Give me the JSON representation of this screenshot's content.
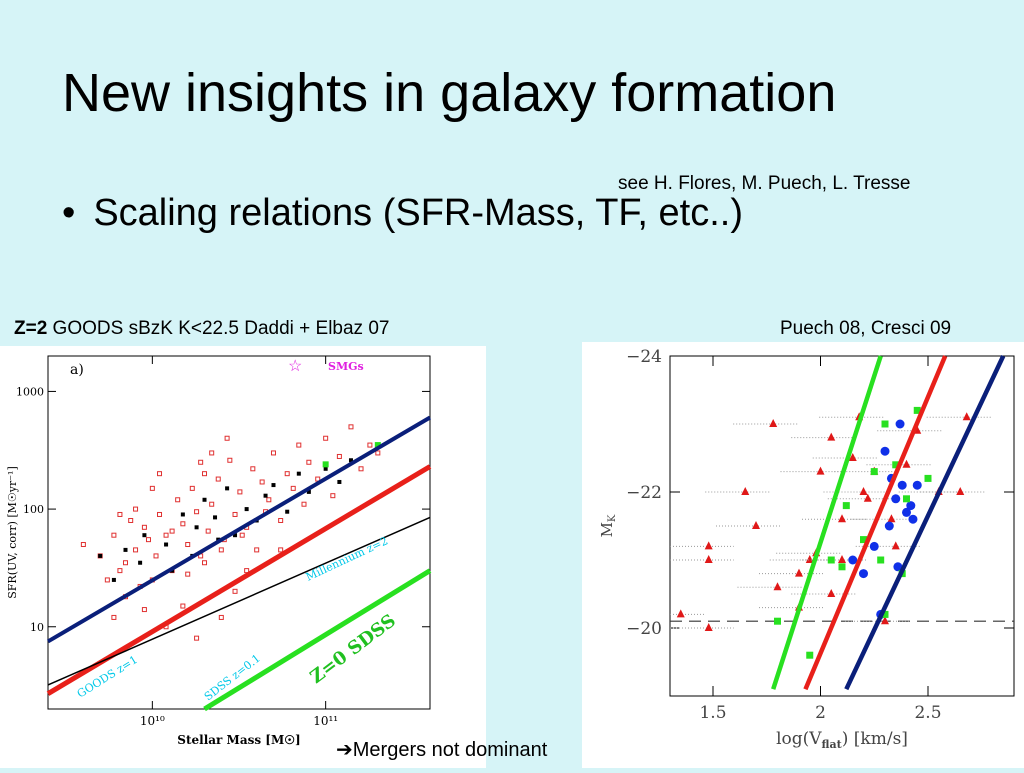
{
  "slide": {
    "title": "New insights in galaxy formation",
    "credit": "see H. Flores, M. Puech, L. Tresse",
    "bullet_marker": "•",
    "bullet": "Scaling relations  (SFR-Mass, TF, etc..)",
    "left_caption_bold": "Z=2",
    "left_caption": " GOODS sBzK K<22.5 Daddi + Elbaz 07",
    "right_caption": "Puech 08, Cresci 09",
    "footnote": "➔Mergers not dominant"
  },
  "chart_data": [
    {
      "type": "scatter",
      "panel_label": "a)",
      "xlabel": "Stellar Mass [M☉]",
      "ylabel": "SFR(UV, corr) [M☉yr⁻¹]",
      "x_scale": "log",
      "y_scale": "log",
      "xlim": [
        2500000000.0,
        400000000000.0
      ],
      "ylim": [
        2,
        2000
      ],
      "x_ticks": [
        {
          "value": 10000000000.0,
          "label": "10¹⁰"
        },
        {
          "value": 100000000000.0,
          "label": "10¹¹"
        }
      ],
      "y_ticks": [
        {
          "value": 10,
          "label": "10"
        },
        {
          "value": 100,
          "label": "100"
        },
        {
          "value": 1000,
          "label": "1000"
        }
      ],
      "legend": {
        "symbol": "☆",
        "label": "SMGs",
        "color": "#e020e0"
      },
      "lines": [
        {
          "name": "GOODS z=1",
          "color": "#0a1f7a",
          "x": [
            2500000000.0,
            400000000000.0
          ],
          "y": [
            7.5,
            600
          ]
        },
        {
          "name": "",
          "color": "#e8201a",
          "x": [
            2500000000.0,
            400000000000.0
          ],
          "y": [
            2.7,
            230
          ]
        },
        {
          "name": "Millennium z=2",
          "color": "#000000",
          "x": [
            2500000000.0,
            400000000000.0
          ],
          "y": [
            3.2,
            85
          ]
        },
        {
          "name": "SDSS z=0.1",
          "color": "#28e020",
          "x": [
            20000000000.0,
            400000000000.0
          ],
          "y": [
            2.0,
            30
          ]
        }
      ],
      "annotations": [
        {
          "text": "GOODS z=1",
          "color": "#00c8e8"
        },
        {
          "text": "Millennium z=2",
          "color": "#00c8e8"
        },
        {
          "text": "SDSS z=0.1",
          "color": "#00c8e8"
        },
        {
          "text": "Z=0 SDSS",
          "color": "#20c020"
        }
      ],
      "points_red_squares": [
        [
          4000000000.0,
          50
        ],
        [
          5000000000.0,
          40
        ],
        [
          5500000000.0,
          25
        ],
        [
          6000000000.0,
          60
        ],
        [
          6500000000.0,
          30
        ],
        [
          7000000000.0,
          35
        ],
        [
          7500000000.0,
          80
        ],
        [
          8000000000.0,
          45
        ],
        [
          8500000000.0,
          22
        ],
        [
          9000000000.0,
          70
        ],
        [
          9500000000.0,
          55
        ],
        [
          10500000000.0,
          40
        ],
        [
          11000000000.0,
          90
        ],
        [
          12000000000.0,
          60
        ],
        [
          13000000000.0,
          30
        ],
        [
          14000000000.0,
          120
        ],
        [
          15000000000.0,
          75
        ],
        [
          16000000000.0,
          50
        ],
        [
          17000000000.0,
          150
        ],
        [
          18000000000.0,
          95
        ],
        [
          19000000000.0,
          40
        ],
        [
          20000000000.0,
          200
        ],
        [
          21000000000.0,
          65
        ],
        [
          22000000000.0,
          110
        ],
        [
          24000000000.0,
          180
        ],
        [
          26000000000.0,
          55
        ],
        [
          28000000000.0,
          260
        ],
        [
          30000000000.0,
          90
        ],
        [
          32000000000.0,
          140
        ],
        [
          35000000000.0,
          70
        ],
        [
          38000000000.0,
          220
        ],
        [
          40000000000.0,
          45
        ],
        [
          43000000000.0,
          170
        ],
        [
          47000000000.0,
          120
        ],
        [
          50000000000.0,
          300
        ],
        [
          55000000000.0,
          80
        ],
        [
          60000000000.0,
          200
        ],
        [
          65000000000.0,
          150
        ],
        [
          70000000000.0,
          350
        ],
        [
          75000000000.0,
          110
        ],
        [
          80000000000.0,
          250
        ],
        [
          90000000000.0,
          180
        ],
        [
          100000000000.0,
          400
        ],
        [
          110000000000.0,
          130
        ],
        [
          120000000000.0,
          280
        ],
        [
          140000000000.0,
          500
        ],
        [
          160000000000.0,
          220
        ],
        [
          180000000000.0,
          350
        ],
        [
          200000000000.0,
          300
        ],
        [
          15000000000.0,
          15
        ],
        [
          18000000000.0,
          8
        ],
        [
          25000000000.0,
          12
        ],
        [
          30000000000.0,
          20
        ],
        [
          12000000000.0,
          10
        ],
        [
          9000000000.0,
          14
        ],
        [
          7000000000.0,
          18
        ],
        [
          6000000000.0,
          12
        ],
        [
          10000000000.0,
          25
        ],
        [
          20000000000.0,
          35
        ],
        [
          25000000000.0,
          45
        ],
        [
          35000000000.0,
          30
        ],
        [
          16000000000.0,
          28
        ],
        [
          13000000000.0,
          65
        ],
        [
          8000000000.0,
          100
        ],
        [
          22000000000.0,
          300
        ],
        [
          27000000000.0,
          400
        ],
        [
          19000000000.0,
          250
        ],
        [
          33000000000.0,
          60
        ],
        [
          45000000000.0,
          95
        ],
        [
          55000000000.0,
          45
        ],
        [
          10000000000.0,
          150
        ],
        [
          11000000000.0,
          200
        ],
        [
          6500000000.0,
          90
        ]
      ],
      "points_black_squares": [
        [
          5000000000.0,
          40
        ],
        [
          7000000000.0,
          45
        ],
        [
          9000000000.0,
          60
        ],
        [
          12000000000.0,
          50
        ],
        [
          15000000000.0,
          90
        ],
        [
          18000000000.0,
          70
        ],
        [
          20000000000.0,
          120
        ],
        [
          23000000000.0,
          85
        ],
        [
          27000000000.0,
          150
        ],
        [
          30000000000.0,
          60
        ],
        [
          35000000000.0,
          100
        ],
        [
          40000000000.0,
          80
        ],
        [
          45000000000.0,
          130
        ],
        [
          50000000000.0,
          160
        ],
        [
          60000000000.0,
          95
        ],
        [
          70000000000.0,
          200
        ],
        [
          80000000000.0,
          140
        ],
        [
          100000000000.0,
          220
        ],
        [
          120000000000.0,
          170
        ],
        [
          140000000000.0,
          260
        ],
        [
          13000000000.0,
          30
        ],
        [
          17000000000.0,
          40
        ],
        [
          24000000000.0,
          55
        ],
        [
          6000000000.0,
          25
        ],
        [
          8500000000.0,
          35
        ]
      ],
      "points_green_squares": [
        [
          200000000000.0,
          350
        ],
        [
          100000000000.0,
          240
        ]
      ]
    },
    {
      "type": "scatter",
      "xlabel": "log(V",
      "xlabel_sub": "flat",
      "xlabel_end": ") [km/s]",
      "ylabel": "M",
      "ylabel_sub": "K",
      "xlim": [
        1.3,
        2.9
      ],
      "ylim": [
        -19,
        -24
      ],
      "x_ticks": [
        {
          "value": 1.5,
          "label": "1.5"
        },
        {
          "value": 2,
          "label": "2"
        },
        {
          "value": 2.5,
          "label": "2.5"
        }
      ],
      "y_ticks": [
        {
          "value": -24,
          "label": "−24"
        },
        {
          "value": -22,
          "label": "−22"
        },
        {
          "value": -20,
          "label": "−20"
        }
      ],
      "hline": -20.1,
      "lines": [
        {
          "name": "",
          "color": "#28e020",
          "x": [
            1.78,
            2.28
          ],
          "y": [
            -19.1,
            -24
          ]
        },
        {
          "name": "",
          "color": "#e8201a",
          "x": [
            1.93,
            2.58
          ],
          "y": [
            -19.1,
            -24
          ]
        },
        {
          "name": "",
          "color": "#0a1f7a",
          "x": [
            2.12,
            2.85
          ],
          "y": [
            -19.1,
            -24
          ]
        }
      ],
      "points_red_triangles": [
        [
          1.35,
          -20.2
        ],
        [
          1.48,
          -20.0
        ],
        [
          1.48,
          -21.0
        ],
        [
          1.48,
          -21.2
        ],
        [
          1.65,
          -22.0
        ],
        [
          1.7,
          -21.5
        ],
        [
          1.8,
          -20.6
        ],
        [
          1.9,
          -20.8
        ],
        [
          1.95,
          -21.0
        ],
        [
          2.0,
          -22.3
        ],
        [
          2.05,
          -22.8
        ],
        [
          2.1,
          -21.6
        ],
        [
          2.15,
          -22.5
        ],
        [
          2.2,
          -22.0
        ],
        [
          2.25,
          -22.3
        ],
        [
          2.3,
          -20.1
        ],
        [
          2.35,
          -21.2
        ],
        [
          2.4,
          -22.4
        ],
        [
          2.45,
          -22.9
        ],
        [
          2.55,
          -22.0
        ],
        [
          2.65,
          -22.0
        ],
        [
          2.68,
          -23.1
        ],
        [
          1.78,
          -23.0
        ],
        [
          1.9,
          -20.3
        ],
        [
          2.05,
          -20.5
        ],
        [
          2.1,
          -21.0
        ],
        [
          2.22,
          -21.9
        ],
        [
          2.33,
          -21.6
        ],
        [
          1.98,
          -21.1
        ],
        [
          2.18,
          -23.1
        ]
      ],
      "points_blue_circles": [
        [
          2.3,
          -22.6
        ],
        [
          2.33,
          -22.2
        ],
        [
          2.35,
          -21.9
        ],
        [
          2.38,
          -22.1
        ],
        [
          2.4,
          -21.7
        ],
        [
          2.43,
          -21.6
        ],
        [
          2.45,
          -22.1
        ],
        [
          2.36,
          -20.9
        ],
        [
          2.2,
          -20.8
        ],
        [
          2.25,
          -21.2
        ],
        [
          2.32,
          -21.5
        ],
        [
          2.37,
          -23.0
        ],
        [
          2.15,
          -21.0
        ],
        [
          2.28,
          -20.2
        ],
        [
          2.42,
          -21.8
        ]
      ],
      "points_green_squares": [
        [
          1.8,
          -20.1
        ],
        [
          1.95,
          -19.6
        ],
        [
          2.05,
          -21.0
        ],
        [
          2.1,
          -20.9
        ],
        [
          2.2,
          -21.3
        ],
        [
          2.25,
          -22.3
        ],
        [
          2.3,
          -23.0
        ],
        [
          2.35,
          -22.4
        ],
        [
          2.4,
          -21.9
        ],
        [
          2.45,
          -23.2
        ],
        [
          2.5,
          -22.2
        ],
        [
          2.3,
          -20.2
        ],
        [
          2.12,
          -21.8
        ],
        [
          2.28,
          -21.0
        ],
        [
          2.38,
          -20.8
        ]
      ]
    }
  ]
}
